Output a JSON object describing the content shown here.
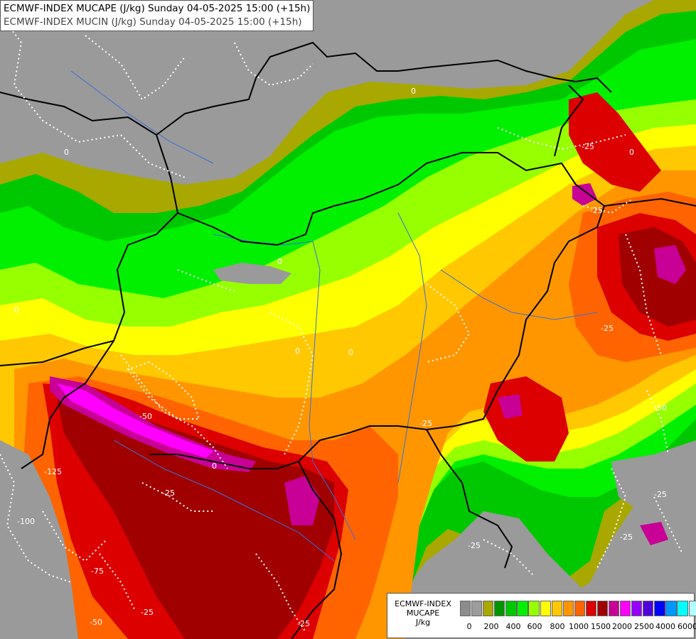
{
  "header": {
    "line1": "ECMWF-INDEX MUCAPE (J/kg) Sunday 04-05-2025 15:00 (+15h)",
    "line2": "ECMWF-INDEX MUCIN (J/kg) Sunday 04-05-2025 15:00 (+15h)"
  },
  "legend": {
    "title_line1": "ECMWF-INDEX",
    "title_line2": "MUCAPE",
    "title_line3": "J/kg",
    "swatch_colors": [
      "#8c8c8c",
      "#9c9c9c",
      "#a8a800",
      "#009600",
      "#00c800",
      "#00f000",
      "#96ff00",
      "#ffff00",
      "#ffc800",
      "#ff9600",
      "#ff6400",
      "#dc0000",
      "#a00000",
      "#c80096",
      "#ff00ff",
      "#9600ff",
      "#5000dc",
      "#0000ff",
      "#0096ff",
      "#00ffff",
      "#b4ffff",
      "#ffffff"
    ],
    "tick_labels": [
      "0",
      "200",
      "400",
      "600",
      "800",
      "1000",
      "1500",
      "2000",
      "2500",
      "4000",
      "6000"
    ]
  },
  "contour_labels": [
    "0",
    "-25",
    "-50",
    "-75",
    "-100",
    "-125"
  ],
  "cape_colors": {
    "none": "#9a9a9a",
    "olive": "#a8a800",
    "dark_green": "#009600",
    "green": "#00c800",
    "lime": "#00f000",
    "yellow_green": "#96ff00",
    "yellow": "#ffff00",
    "gold": "#ffc800",
    "orange": "#ff9600",
    "dark_orange": "#ff6400",
    "red": "#dc0000",
    "dark_red": "#a00000",
    "magenta": "#c80096",
    "pink": "#ff00ff"
  }
}
